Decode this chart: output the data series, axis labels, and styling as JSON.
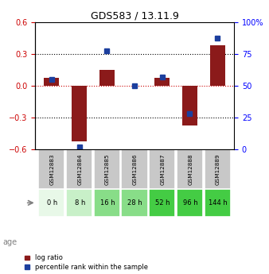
{
  "title": "GDS583 / 13.11.9",
  "samples": [
    "GSM12883",
    "GSM12884",
    "GSM12885",
    "GSM12886",
    "GSM12887",
    "GSM12888",
    "GSM12889"
  ],
  "ages": [
    "0 h",
    "8 h",
    "16 h",
    "28 h",
    "52 h",
    "96 h",
    "144 h"
  ],
  "log_ratio": [
    0.07,
    -0.53,
    0.15,
    0.0,
    0.07,
    -0.38,
    0.38
  ],
  "percentile_rank": [
    55,
    2,
    77,
    50,
    57,
    28,
    87
  ],
  "ylim_left": [
    -0.6,
    0.6
  ],
  "ylim_right": [
    0,
    100
  ],
  "yticks_left": [
    -0.6,
    -0.3,
    0.0,
    0.3,
    0.6
  ],
  "yticks_right": [
    0,
    25,
    50,
    75,
    100
  ],
  "bar_color_red": "#8B1A1A",
  "bar_color_blue": "#1C3F9E",
  "dotted_line_color": "#000000",
  "zero_line_color": "#CC0000",
  "age_colors": [
    "#e8f8e8",
    "#c8f0c8",
    "#88dd88",
    "#88dd88",
    "#44cc44",
    "#44cc44",
    "#44cc44"
  ],
  "sample_bg_color": "#c8c8c8",
  "bar_width": 0.55,
  "blue_marker_size": 5,
  "legend_red_label": "log ratio",
  "legend_blue_label": "percentile rank within the sample"
}
